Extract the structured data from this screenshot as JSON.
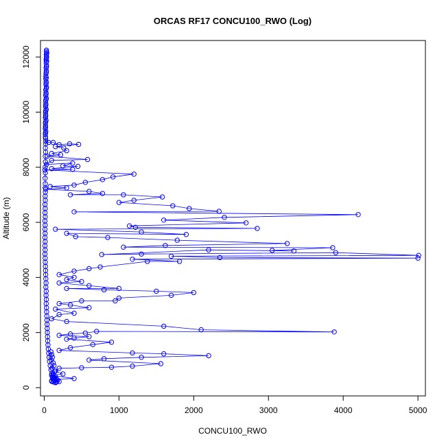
{
  "chart_data": {
    "type": "scatter",
    "title": "ORCAS RF17 CONCU100_RWO (Log)",
    "xlabel": "CONCU100_RWO",
    "ylabel": "Altitude (m)",
    "xlim": [
      -50,
      5100
    ],
    "ylim": [
      -300,
      12600
    ],
    "x_ticks": [
      0,
      1000,
      2000,
      3000,
      4000,
      5000
    ],
    "y_ticks": [
      0,
      2000,
      4000,
      6000,
      8000,
      10000,
      12000
    ],
    "x_tick_labels": [
      "0",
      "1000",
      "2000",
      "3000",
      "4000",
      "5000"
    ],
    "y_tick_labels": [
      "0",
      "2000",
      "4000",
      "6000",
      "8000",
      "10000",
      "12000"
    ],
    "grid": false,
    "legend": "none",
    "marker": "open-circle",
    "connected": true,
    "color": "#0000ff",
    "series": [
      {
        "points": [
          [
            30,
            12200
          ],
          [
            28,
            12100
          ],
          [
            32,
            12000
          ],
          [
            25,
            11900
          ],
          [
            30,
            11700
          ],
          [
            28,
            11500
          ],
          [
            22,
            11300
          ],
          [
            26,
            11100
          ],
          [
            30,
            10900
          ],
          [
            24,
            10700
          ],
          [
            28,
            10500
          ],
          [
            22,
            10300
          ],
          [
            26,
            10100
          ],
          [
            20,
            9900
          ],
          [
            24,
            9700
          ],
          [
            18,
            9500
          ],
          [
            22,
            9300
          ],
          [
            16,
            9100
          ],
          [
            20,
            8950
          ],
          [
            60,
            8900
          ],
          [
            120,
            8900
          ],
          [
            200,
            8820
          ],
          [
            340,
            8850
          ],
          [
            460,
            8830
          ],
          [
            150,
            8750
          ],
          [
            260,
            8700
          ],
          [
            300,
            8600
          ],
          [
            100,
            8500
          ],
          [
            220,
            8450
          ],
          [
            40,
            8400
          ],
          [
            580,
            8280
          ],
          [
            100,
            8250
          ],
          [
            30,
            8100
          ],
          [
            380,
            8150
          ],
          [
            250,
            8050
          ],
          [
            450,
            8030
          ],
          [
            100,
            7950
          ],
          [
            380,
            7920
          ],
          [
            10,
            7900
          ],
          [
            1200,
            7750
          ],
          [
            920,
            7650
          ],
          [
            780,
            7550
          ],
          [
            550,
            7450
          ],
          [
            400,
            7350
          ],
          [
            80,
            7300
          ],
          [
            300,
            7250
          ],
          [
            20,
            7200
          ],
          [
            600,
            7120
          ],
          [
            780,
            7050
          ],
          [
            350,
            7000
          ],
          [
            1060,
            7000
          ],
          [
            1580,
            6920
          ],
          [
            1200,
            6800
          ],
          [
            1000,
            6720
          ],
          [
            1720,
            6600
          ],
          [
            1940,
            6500
          ],
          [
            2340,
            6400
          ],
          [
            400,
            6380
          ],
          [
            4200,
            6280
          ],
          [
            2410,
            6180
          ],
          [
            1600,
            6080
          ],
          [
            2700,
            5980
          ],
          [
            1140,
            5870
          ],
          [
            1220,
            5820
          ],
          [
            2850,
            5780
          ],
          [
            150,
            5750
          ],
          [
            1300,
            5650
          ],
          [
            1900,
            5560
          ],
          [
            300,
            5600
          ],
          [
            420,
            5480
          ],
          [
            850,
            5450
          ],
          [
            1780,
            5350
          ],
          [
            3250,
            5230
          ],
          [
            1620,
            5160
          ],
          [
            1060,
            5100
          ],
          [
            3860,
            5080
          ],
          [
            3050,
            4980
          ],
          [
            3340,
            4960
          ],
          [
            2200,
            5000
          ],
          [
            770,
            4830
          ],
          [
            1300,
            4850
          ],
          [
            3900,
            4900
          ],
          [
            5010,
            4800
          ],
          [
            1700,
            4770
          ],
          [
            2350,
            4720
          ],
          [
            5000,
            4700
          ],
          [
            1180,
            4660
          ],
          [
            1810,
            4580
          ],
          [
            1380,
            4580
          ],
          [
            750,
            4380
          ],
          [
            600,
            4320
          ],
          [
            400,
            4230
          ],
          [
            200,
            4100
          ],
          [
            400,
            4000
          ],
          [
            300,
            3920
          ],
          [
            500,
            3850
          ],
          [
            200,
            3800
          ],
          [
            600,
            3700
          ],
          [
            1000,
            3600
          ],
          [
            300,
            3600
          ],
          [
            800,
            3550
          ],
          [
            1500,
            3500
          ],
          [
            2000,
            3450
          ],
          [
            1700,
            3350
          ],
          [
            1000,
            3250
          ],
          [
            950,
            3150
          ],
          [
            500,
            3150
          ],
          [
            200,
            3050
          ],
          [
            350,
            3000
          ],
          [
            600,
            2900
          ],
          [
            150,
            2850
          ],
          [
            400,
            2700
          ],
          [
            200,
            2650
          ],
          [
            100,
            2500
          ],
          [
            300,
            2400
          ],
          [
            1600,
            2230
          ],
          [
            2100,
            2100
          ],
          [
            3880,
            2020
          ],
          [
            700,
            2040
          ],
          [
            550,
            1980
          ],
          [
            350,
            1950
          ],
          [
            200,
            1900
          ],
          [
            600,
            1850
          ],
          [
            400,
            1800
          ],
          [
            300,
            1760
          ],
          [
            900,
            1650
          ],
          [
            650,
            1560
          ],
          [
            350,
            1450
          ],
          [
            200,
            1350
          ],
          [
            1180,
            1260
          ],
          [
            1600,
            1230
          ],
          [
            2200,
            1160
          ],
          [
            1300,
            1100
          ],
          [
            800,
            1050
          ],
          [
            600,
            1000
          ],
          [
            1560,
            870
          ],
          [
            1180,
            780
          ],
          [
            900,
            740
          ],
          [
            500,
            720
          ],
          [
            200,
            700
          ],
          [
            150,
            600
          ],
          [
            250,
            500
          ],
          [
            100,
            450
          ],
          [
            400,
            330
          ],
          [
            120,
            300
          ],
          [
            200,
            220
          ],
          [
            150,
            180
          ],
          [
            100,
            250
          ],
          [
            140,
            350
          ],
          [
            120,
            450
          ]
        ]
      },
      {
        "points": [
          [
            30,
            12250
          ],
          [
            34,
            12150
          ],
          [
            30,
            12050
          ],
          [
            28,
            11950
          ],
          [
            33,
            11850
          ],
          [
            26,
            11800
          ],
          [
            30,
            11650
          ],
          [
            25,
            11600
          ],
          [
            28,
            11450
          ],
          [
            24,
            11400
          ],
          [
            27,
            11250
          ],
          [
            22,
            11200
          ],
          [
            25,
            11050
          ],
          [
            23,
            11000
          ],
          [
            26,
            10850
          ],
          [
            21,
            10800
          ],
          [
            24,
            10650
          ],
          [
            20,
            10600
          ],
          [
            23,
            10450
          ],
          [
            19,
            10400
          ],
          [
            22,
            10250
          ],
          [
            18,
            10200
          ],
          [
            21,
            10050
          ],
          [
            17,
            10000
          ],
          [
            20,
            9850
          ],
          [
            16,
            9800
          ],
          [
            19,
            9650
          ],
          [
            15,
            9600
          ],
          [
            18,
            9450
          ],
          [
            14,
            9400
          ],
          [
            17,
            9250
          ],
          [
            15,
            9200
          ],
          [
            18,
            9050
          ],
          [
            20,
            8850
          ],
          [
            15,
            8700
          ],
          [
            18,
            8550
          ],
          [
            14,
            8400
          ],
          [
            16,
            8200
          ],
          [
            13,
            8000
          ],
          [
            15,
            7800
          ],
          [
            12,
            7600
          ],
          [
            14,
            7400
          ],
          [
            12,
            7250
          ],
          [
            15,
            7100
          ],
          [
            12,
            6950
          ],
          [
            14,
            6800
          ],
          [
            11,
            6650
          ],
          [
            13,
            6500
          ],
          [
            11,
            6350
          ],
          [
            13,
            6200
          ],
          [
            10,
            6050
          ],
          [
            12,
            5900
          ],
          [
            10,
            5750
          ],
          [
            12,
            5600
          ],
          [
            10,
            5450
          ],
          [
            12,
            5300
          ],
          [
            10,
            5150
          ],
          [
            12,
            5000
          ],
          [
            10,
            4850
          ],
          [
            12,
            4700
          ],
          [
            14,
            4550
          ],
          [
            16,
            4400
          ],
          [
            18,
            4250
          ],
          [
            20,
            4100
          ],
          [
            22,
            3950
          ],
          [
            24,
            3800
          ],
          [
            22,
            3650
          ],
          [
            26,
            3500
          ],
          [
            24,
            3350
          ],
          [
            28,
            3200
          ],
          [
            26,
            3050
          ],
          [
            30,
            2900
          ],
          [
            32,
            2750
          ],
          [
            34,
            2600
          ],
          [
            36,
            2450
          ],
          [
            38,
            2300
          ],
          [
            40,
            2150
          ],
          [
            42,
            2000
          ],
          [
            44,
            1850
          ],
          [
            46,
            1700
          ],
          [
            50,
            1550
          ],
          [
            55,
            1400
          ],
          [
            60,
            1250
          ],
          [
            65,
            1100
          ],
          [
            70,
            950
          ],
          [
            80,
            800
          ],
          [
            90,
            650
          ],
          [
            100,
            500
          ],
          [
            110,
            400
          ],
          [
            130,
            300
          ]
        ]
      },
      {
        "points": [
          [
            90,
            1300
          ],
          [
            100,
            1200
          ],
          [
            110,
            1100
          ],
          [
            95,
            1000
          ],
          [
            120,
            900
          ],
          [
            130,
            800
          ],
          [
            105,
            700
          ],
          [
            140,
            600
          ],
          [
            120,
            500
          ],
          [
            150,
            400
          ],
          [
            130,
            350
          ],
          [
            160,
            300
          ],
          [
            140,
            260
          ],
          [
            170,
            220
          ],
          [
            150,
            200
          ],
          [
            120,
            210
          ],
          [
            100,
            230
          ],
          [
            180,
            280
          ],
          [
            160,
            320
          ],
          [
            110,
            380
          ]
        ]
      }
    ]
  }
}
